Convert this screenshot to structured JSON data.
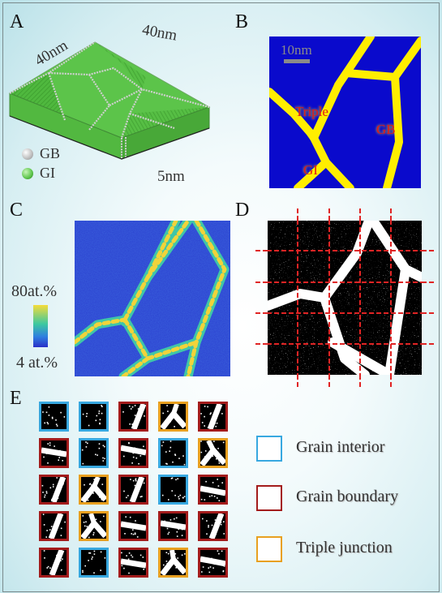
{
  "panel_labels": [
    "A",
    "B",
    "C",
    "D",
    "E"
  ],
  "panel_a": {
    "dim_top_left": "40nm",
    "dim_top_right": "40nm",
    "dim_depth": "5nm",
    "legend": [
      {
        "label": "GB",
        "color": "#bdbdbd"
      },
      {
        "label": "GI",
        "color": "#5cc44a"
      }
    ]
  },
  "panel_b": {
    "scalebar": "10nm",
    "labels": [
      "Triple",
      "GB",
      "GI"
    ],
    "colors": {
      "background": "#0a0acc",
      "boundary": "#ffee00",
      "text": "#e01818"
    }
  },
  "panel_c": {
    "colorbar_max": "80at.%",
    "colorbar_min": "4 at.%"
  },
  "panel_e": {
    "legend": [
      {
        "label": "Grain interior",
        "color": "#38a8e0"
      },
      {
        "label": "Grain boundary",
        "color": "#a31c1c"
      },
      {
        "label": "Triple junction",
        "color": "#e8a020"
      }
    ],
    "grid": [
      [
        "interior",
        "interior",
        "boundary",
        "triple",
        "boundary"
      ],
      [
        "boundary",
        "interior",
        "boundary",
        "interior",
        "triple"
      ],
      [
        "boundary",
        "triple",
        "boundary",
        "interior",
        "boundary"
      ],
      [
        "boundary",
        "triple",
        "boundary",
        "boundary",
        "boundary"
      ],
      [
        "boundary",
        "interior",
        "boundary",
        "triple",
        "boundary"
      ]
    ]
  }
}
